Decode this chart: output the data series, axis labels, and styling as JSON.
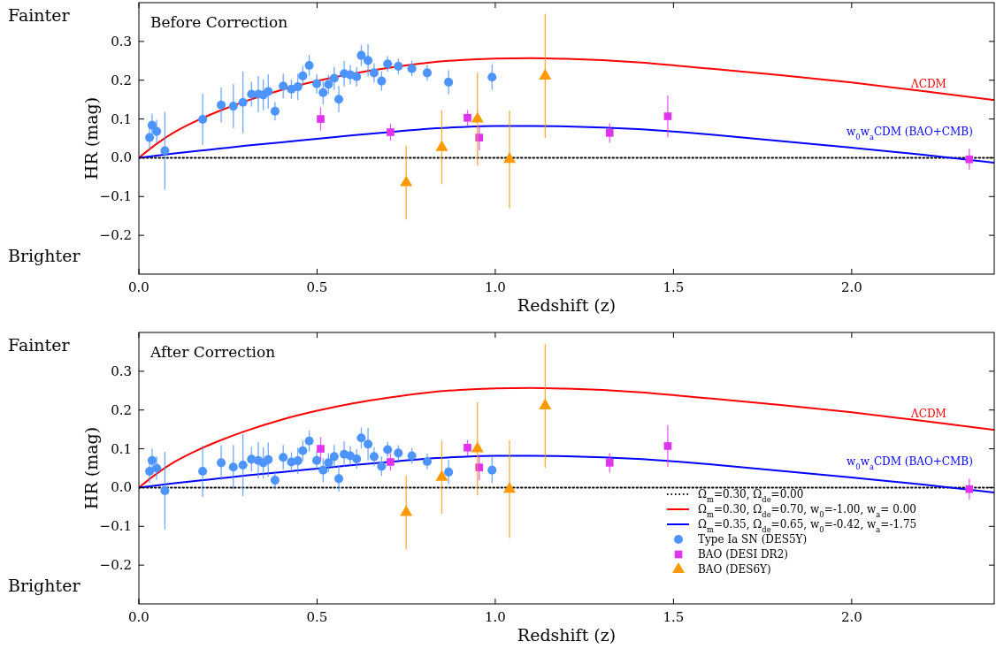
{
  "chart_data": [
    {
      "type": "scatter",
      "title": "Before Correction",
      "xlabel": "Redshift (z)",
      "ylabel": "HR (mag)",
      "annotations": [
        "Fainter",
        "Brighter",
        "ΛCDM",
        "w$_{0}$w$_{a}$CDM (BAO+CMB)"
      ],
      "xlim": [
        0,
        2.4
      ],
      "ylim": [
        -0.3,
        0.4
      ],
      "xticks": [
        {
          "value": 0,
          "label": "0.0"
        },
        {
          "value": 0.5,
          "label": "0.5"
        },
        {
          "value": 1,
          "label": "1.0"
        },
        {
          "value": 1.5,
          "label": "1.5"
        },
        {
          "value": 2,
          "label": "2.0"
        }
      ],
      "yticks": [
        {
          "value": -0.2,
          "label": "−0.2"
        },
        {
          "value": -0.1,
          "label": "−0.1"
        },
        {
          "value": 0,
          "label": "0.0"
        },
        0.1,
        0.2,
        0.3
      ],
      "grid": false,
      "series": [
        {
          "type": "line",
          "color": "#000000",
          "line_style": "dotted",
          "x": [
            0,
            2.4
          ],
          "values": [
            0,
            0
          ]
        },
        {
          "type": "line",
          "color": "#ff0000",
          "line_style": "solid",
          "x": [
            0,
            0.05,
            0.1,
            0.15,
            0.2,
            0.3,
            0.4,
            0.5,
            0.6,
            0.7,
            0.8,
            0.9,
            1.0,
            1.1,
            1.2,
            1.4,
            1.6,
            1.8,
            2.0,
            2.2,
            2.4
          ],
          "values": [
            0,
            0.036,
            0.066,
            0.09,
            0.111,
            0.146,
            0.175,
            0.198,
            0.217,
            0.232,
            0.244,
            0.252,
            0.256,
            0.257,
            0.255,
            0.246,
            0.23,
            0.213,
            0.194,
            0.172,
            0.149
          ]
        },
        {
          "type": "line",
          "color": "#0000ff",
          "line_style": "solid",
          "x": [
            0,
            0.1,
            0.2,
            0.3,
            0.4,
            0.5,
            0.6,
            0.7,
            0.8,
            0.9,
            1.0,
            1.1,
            1.2,
            1.4,
            1.6,
            1.8,
            2.0,
            2.2,
            2.4
          ],
          "values": [
            0,
            0.011,
            0.021,
            0.031,
            0.04,
            0.049,
            0.058,
            0.066,
            0.074,
            0.079,
            0.082,
            0.082,
            0.081,
            0.074,
            0.06,
            0.043,
            0.026,
            0.008,
            -0.013
          ]
        },
        {
          "type": "scatter",
          "color": "#4d94ff",
          "marker": "circle",
          "x": [
            0.03,
            0.037,
            0.05,
            0.073,
            0.179,
            0.231,
            0.265,
            0.292,
            0.316,
            0.335,
            0.349,
            0.363,
            0.382,
            0.405,
            0.428,
            0.446,
            0.46,
            0.478,
            0.499,
            0.517,
            0.532,
            0.548,
            0.561,
            0.576,
            0.593,
            0.611,
            0.624,
            0.643,
            0.66,
            0.681,
            0.698,
            0.728,
            0.766,
            0.809,
            0.869,
            0.991
          ],
          "values": [
            0.052,
            0.084,
            0.068,
            0.018,
            0.099,
            0.136,
            0.133,
            0.143,
            0.164,
            0.164,
            0.162,
            0.171,
            0.12,
            0.185,
            0.177,
            0.183,
            0.211,
            0.238,
            0.191,
            0.168,
            0.189,
            0.205,
            0.151,
            0.217,
            0.214,
            0.209,
            0.264,
            0.251,
            0.219,
            0.198,
            0.242,
            0.236,
            0.23,
            0.219,
            0.195,
            0.208
          ],
          "errors": [
            0.03,
            0.03,
            0.03,
            0.1,
            0.066,
            0.045,
            0.057,
            0.08,
            0.032,
            0.047,
            0.04,
            0.044,
            0.024,
            0.032,
            0.025,
            0.034,
            0.026,
            0.027,
            0.025,
            0.031,
            0.025,
            0.03,
            0.034,
            0.033,
            0.025,
            0.025,
            0.027,
            0.042,
            0.025,
            0.025,
            0.02,
            0.02,
            0.02,
            0.02,
            0.031,
            0.033
          ]
        },
        {
          "type": "scatter",
          "color": "#e033f0",
          "marker": "square",
          "x": [
            0.51,
            0.706,
            0.922,
            0.955,
            1.321,
            1.484,
            2.33
          ],
          "values": [
            0.1,
            0.066,
            0.103,
            0.052,
            0.064,
            0.107,
            -0.004
          ],
          "errors": [
            0.03,
            0.022,
            0.02,
            0.033,
            0.025,
            0.054,
            0.027
          ]
        },
        {
          "type": "scatter",
          "color": "#ff9900",
          "marker": "triangle",
          "x": [
            0.75,
            0.85,
            0.95,
            1.04,
            1.14
          ],
          "values": [
            -0.064,
            0.027,
            0.1,
            -0.004,
            0.211
          ],
          "errors": [
            0.095,
            0.095,
            0.12,
            0.126,
            0.16
          ]
        }
      ]
    },
    {
      "type": "scatter",
      "title": "After Correction",
      "xlabel": "Redshift (z)",
      "ylabel": "HR (mag)",
      "annotations": [
        "Fainter",
        "Brighter",
        "ΛCDM",
        "w$_{0}$w$_{a}$CDM (BAO+CMB)"
      ],
      "xlim": [
        0,
        2.4
      ],
      "ylim": [
        -0.3,
        0.4
      ],
      "xticks": [
        {
          "value": 0,
          "label": "0.0"
        },
        {
          "value": 0.5,
          "label": "0.5"
        },
        {
          "value": 1,
          "label": "1.0"
        },
        {
          "value": 1.5,
          "label": "1.5"
        },
        {
          "value": 2,
          "label": "2.0"
        }
      ],
      "yticks": [
        {
          "value": -0.2,
          "label": "−0.2"
        },
        {
          "value": -0.1,
          "label": "−0.1"
        },
        {
          "value": 0,
          "label": "0.0"
        },
        0.1,
        0.2,
        0.3
      ],
      "grid": false,
      "legend": "bottom right",
      "series": [
        {
          "type": "line",
          "name": "Ω$_{m}$=0.30, Ω$_{de}$=0.00",
          "color": "#000000",
          "line_style": "dotted",
          "x": [
            0,
            2.4
          ],
          "values": [
            0,
            0
          ]
        },
        {
          "type": "line",
          "name": "Ω$_{m}$=0.30, Ω$_{de}$=0.70, w$_{0}$=-1.00, w$_{a}$= 0.00",
          "color": "#ff0000",
          "line_style": "solid",
          "x": [
            0,
            0.05,
            0.1,
            0.15,
            0.2,
            0.3,
            0.4,
            0.5,
            0.6,
            0.7,
            0.8,
            0.9,
            1.0,
            1.1,
            1.2,
            1.4,
            1.6,
            1.8,
            2.0,
            2.2,
            2.4
          ],
          "values": [
            0,
            0.036,
            0.066,
            0.09,
            0.111,
            0.146,
            0.175,
            0.198,
            0.217,
            0.232,
            0.244,
            0.252,
            0.256,
            0.257,
            0.255,
            0.246,
            0.23,
            0.213,
            0.194,
            0.172,
            0.149
          ]
        },
        {
          "type": "line",
          "name": "Ω$_{m}$=0.35, Ω$_{de}$=0.65, w$_{0}$=-0.42, w$_{a}$=-1.75",
          "color": "#0000ff",
          "line_style": "solid",
          "x": [
            0,
            0.1,
            0.2,
            0.3,
            0.4,
            0.5,
            0.6,
            0.7,
            0.8,
            0.9,
            1.0,
            1.1,
            1.2,
            1.4,
            1.6,
            1.8,
            2.0,
            2.2,
            2.4
          ],
          "values": [
            0,
            0.011,
            0.021,
            0.031,
            0.04,
            0.049,
            0.058,
            0.066,
            0.074,
            0.079,
            0.082,
            0.082,
            0.081,
            0.074,
            0.06,
            0.043,
            0.026,
            0.008,
            -0.013
          ]
        },
        {
          "type": "scatter",
          "name": "Type Ia SN (DES5Y)",
          "color": "#4d94ff",
          "marker": "circle",
          "x": [
            0.03,
            0.037,
            0.05,
            0.073,
            0.179,
            0.231,
            0.265,
            0.292,
            0.316,
            0.335,
            0.349,
            0.363,
            0.382,
            0.405,
            0.428,
            0.446,
            0.46,
            0.478,
            0.499,
            0.517,
            0.532,
            0.548,
            0.561,
            0.576,
            0.593,
            0.611,
            0.624,
            0.643,
            0.66,
            0.681,
            0.698,
            0.728,
            0.766,
            0.809,
            0.869,
            0.991
          ],
          "values": [
            0.042,
            0.07,
            0.05,
            -0.008,
            0.042,
            0.064,
            0.053,
            0.058,
            0.073,
            0.07,
            0.064,
            0.072,
            0.019,
            0.078,
            0.066,
            0.069,
            0.095,
            0.12,
            0.07,
            0.045,
            0.064,
            0.08,
            0.023,
            0.086,
            0.082,
            0.074,
            0.128,
            0.112,
            0.08,
            0.055,
            0.098,
            0.089,
            0.082,
            0.067,
            0.04,
            0.045
          ],
          "errors": [
            0.03,
            0.03,
            0.03,
            0.1,
            0.066,
            0.045,
            0.057,
            0.08,
            0.032,
            0.047,
            0.04,
            0.044,
            0.024,
            0.032,
            0.025,
            0.034,
            0.026,
            0.027,
            0.025,
            0.031,
            0.025,
            0.03,
            0.034,
            0.033,
            0.025,
            0.025,
            0.027,
            0.042,
            0.025,
            0.025,
            0.02,
            0.02,
            0.02,
            0.02,
            0.031,
            0.033
          ]
        },
        {
          "type": "scatter",
          "name": "BAO (DESI DR2)",
          "color": "#e033f0",
          "marker": "square",
          "x": [
            0.51,
            0.706,
            0.922,
            0.955,
            1.321,
            1.484,
            2.33
          ],
          "values": [
            0.1,
            0.066,
            0.103,
            0.052,
            0.064,
            0.107,
            -0.004
          ],
          "errors": [
            0.03,
            0.022,
            0.02,
            0.033,
            0.025,
            0.054,
            0.027
          ]
        },
        {
          "type": "scatter",
          "name": "BAO (DES6Y)",
          "color": "#ff9900",
          "marker": "triangle",
          "x": [
            0.75,
            0.85,
            0.95,
            1.04,
            1.14
          ],
          "values": [
            -0.064,
            0.027,
            0.1,
            -0.004,
            0.211
          ],
          "errors": [
            0.095,
            0.095,
            0.12,
            0.126,
            0.16
          ]
        }
      ]
    }
  ]
}
